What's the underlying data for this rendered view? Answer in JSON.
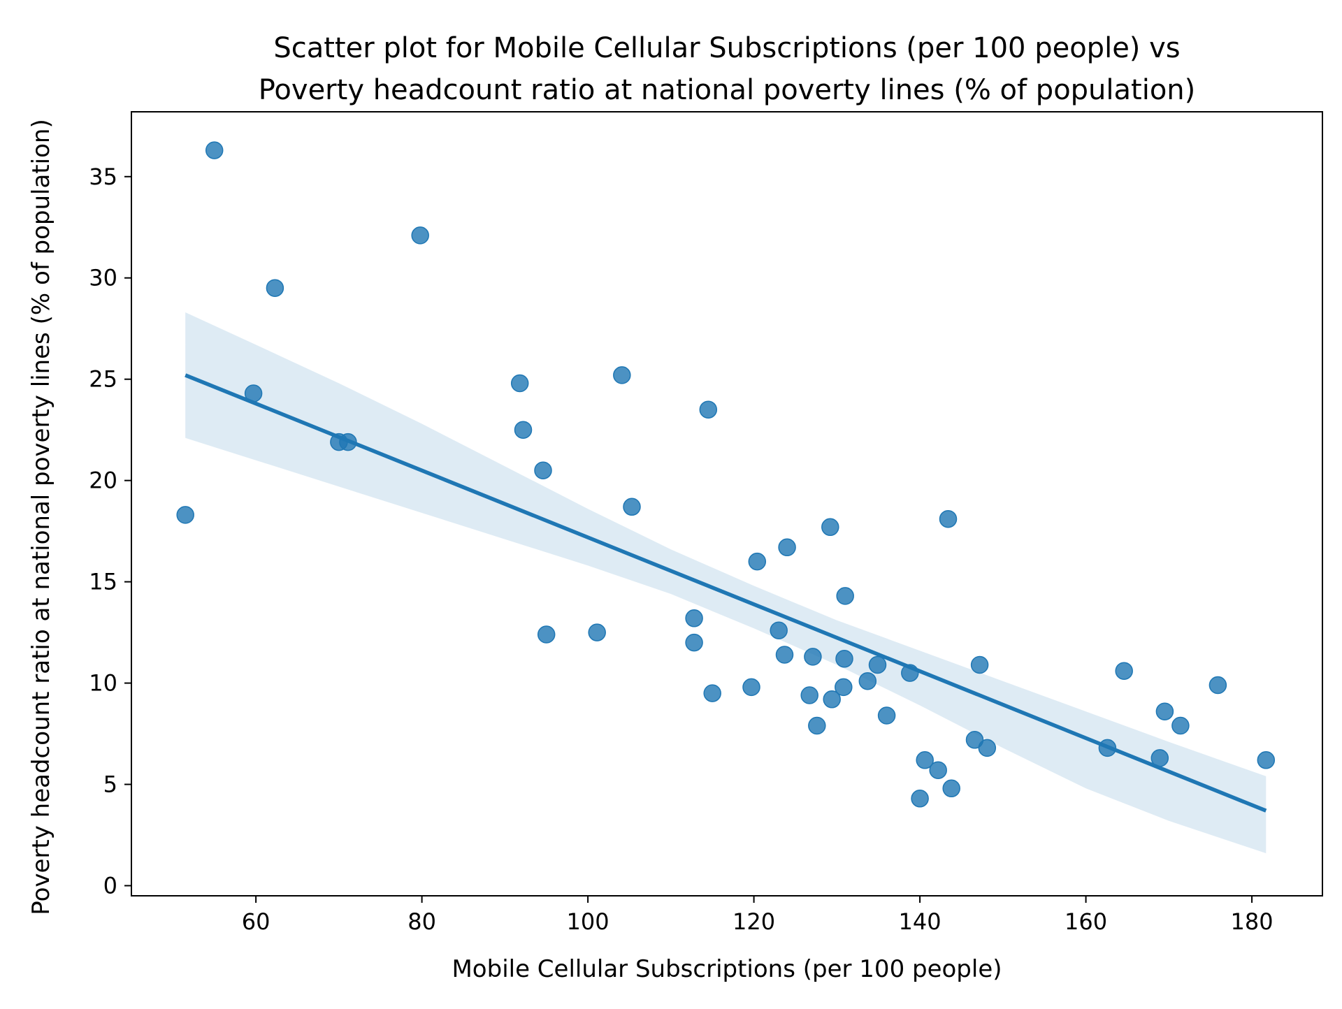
{
  "chart_data": {
    "type": "scatter",
    "title_lines": [
      "Scatter plot for Mobile Cellular Subscriptions (per 100 people) vs",
      "Poverty headcount ratio at national poverty lines (% of population)"
    ],
    "xlabel": "Mobile Cellular Subscriptions (per 100 people)",
    "ylabel": "Poverty headcount ratio at national poverty lines (% of population)",
    "xlim": [
      45,
      188.5
    ],
    "ylim": [
      -0.5,
      38.2
    ],
    "x_ticks": [
      60,
      80,
      100,
      120,
      140,
      160,
      180
    ],
    "y_ticks": [
      0,
      5,
      10,
      15,
      20,
      25,
      30,
      35
    ],
    "x_tick_labels": [
      "60",
      "80",
      "100",
      "120",
      "140",
      "160",
      "180"
    ],
    "y_tick_labels": [
      "0",
      "5",
      "10",
      "15",
      "20",
      "25",
      "30",
      "35"
    ],
    "grid": false,
    "colors": {
      "points": "#1f77b4",
      "line": "#1f77b4",
      "band": "#1f77b4"
    },
    "points": [
      {
        "x": 51.5,
        "y": 18.3
      },
      {
        "x": 55.0,
        "y": 36.3
      },
      {
        "x": 59.7,
        "y": 24.3
      },
      {
        "x": 62.3,
        "y": 29.5
      },
      {
        "x": 70.0,
        "y": 21.9
      },
      {
        "x": 71.1,
        "y": 21.9
      },
      {
        "x": 79.8,
        "y": 32.1
      },
      {
        "x": 91.8,
        "y": 24.8
      },
      {
        "x": 92.2,
        "y": 22.5
      },
      {
        "x": 94.6,
        "y": 20.5
      },
      {
        "x": 95.0,
        "y": 12.4
      },
      {
        "x": 101.1,
        "y": 12.5
      },
      {
        "x": 104.1,
        "y": 25.2
      },
      {
        "x": 105.3,
        "y": 18.7
      },
      {
        "x": 112.8,
        "y": 13.2
      },
      {
        "x": 112.8,
        "y": 12.0
      },
      {
        "x": 114.5,
        "y": 23.5
      },
      {
        "x": 115.0,
        "y": 9.5
      },
      {
        "x": 119.7,
        "y": 9.8
      },
      {
        "x": 120.4,
        "y": 16.0
      },
      {
        "x": 123.0,
        "y": 12.6
      },
      {
        "x": 123.7,
        "y": 11.4
      },
      {
        "x": 124.0,
        "y": 16.7
      },
      {
        "x": 126.7,
        "y": 9.4
      },
      {
        "x": 127.1,
        "y": 11.3
      },
      {
        "x": 127.6,
        "y": 7.9
      },
      {
        "x": 129.2,
        "y": 17.7
      },
      {
        "x": 129.4,
        "y": 9.2
      },
      {
        "x": 130.8,
        "y": 9.8
      },
      {
        "x": 130.9,
        "y": 11.2
      },
      {
        "x": 131.0,
        "y": 14.3
      },
      {
        "x": 133.7,
        "y": 10.1
      },
      {
        "x": 134.9,
        "y": 10.9
      },
      {
        "x": 136.0,
        "y": 8.4
      },
      {
        "x": 138.8,
        "y": 10.5
      },
      {
        "x": 140.0,
        "y": 4.3
      },
      {
        "x": 140.6,
        "y": 6.2
      },
      {
        "x": 142.2,
        "y": 5.7
      },
      {
        "x": 143.4,
        "y": 18.1
      },
      {
        "x": 143.8,
        "y": 4.8
      },
      {
        "x": 146.6,
        "y": 7.2
      },
      {
        "x": 147.2,
        "y": 10.9
      },
      {
        "x": 148.1,
        "y": 6.8
      },
      {
        "x": 162.6,
        "y": 6.8
      },
      {
        "x": 164.6,
        "y": 10.6
      },
      {
        "x": 168.9,
        "y": 6.3
      },
      {
        "x": 169.5,
        "y": 8.6
      },
      {
        "x": 171.4,
        "y": 7.9
      },
      {
        "x": 175.9,
        "y": 9.9
      },
      {
        "x": 181.7,
        "y": 6.2
      }
    ],
    "regression": {
      "x_start": 51.5,
      "y_start": 25.2,
      "x_end": 181.7,
      "y_end": 3.7
    },
    "confidence_band": [
      {
        "x": 51.5,
        "upper": 28.3,
        "lower": 22.1
      },
      {
        "x": 60,
        "upper": 26.7,
        "lower": 21.0
      },
      {
        "x": 70,
        "upper": 24.8,
        "lower": 19.7
      },
      {
        "x": 80,
        "upper": 22.8,
        "lower": 18.4
      },
      {
        "x": 90,
        "upper": 20.7,
        "lower": 17.1
      },
      {
        "x": 100,
        "upper": 18.6,
        "lower": 15.8
      },
      {
        "x": 110,
        "upper": 16.6,
        "lower": 14.4
      },
      {
        "x": 120,
        "upper": 14.8,
        "lower": 12.7
      },
      {
        "x": 130,
        "upper": 13.1,
        "lower": 10.9
      },
      {
        "x": 140,
        "upper": 11.6,
        "lower": 8.9
      },
      {
        "x": 150,
        "upper": 10.1,
        "lower": 6.8
      },
      {
        "x": 160,
        "upper": 8.6,
        "lower": 4.8
      },
      {
        "x": 170,
        "upper": 7.1,
        "lower": 3.2
      },
      {
        "x": 181.7,
        "upper": 5.4,
        "lower": 1.6
      }
    ]
  }
}
